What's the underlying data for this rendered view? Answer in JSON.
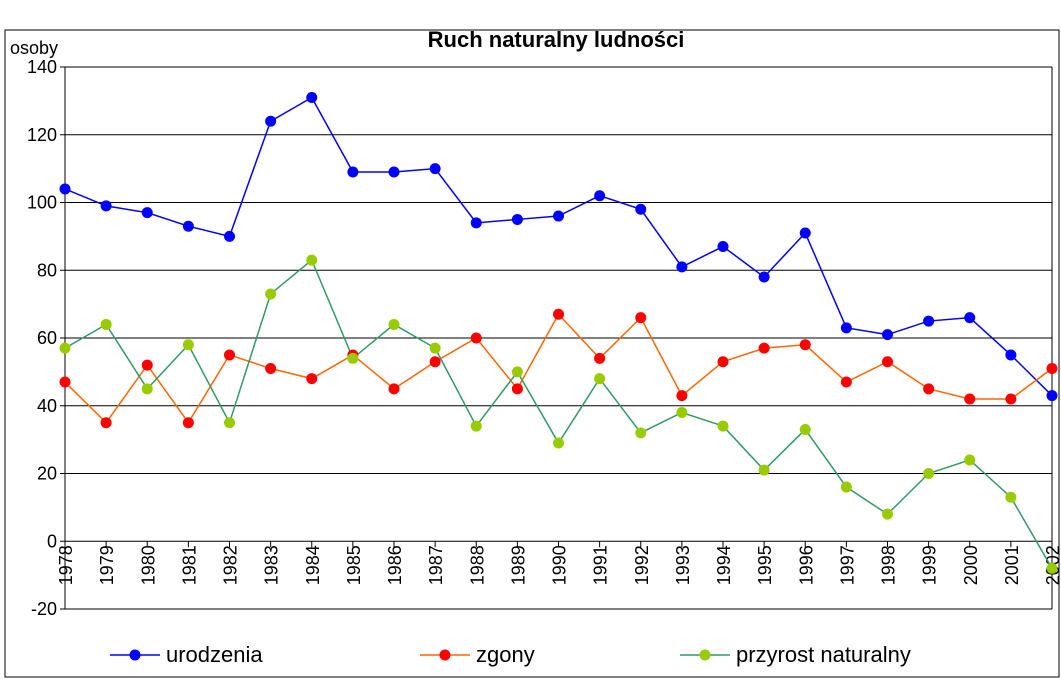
{
  "chart_data": {
    "type": "line",
    "title": "Ruch naturalny ludności",
    "y_label": "osoby",
    "categories": [
      "1978",
      "1979",
      "1980",
      "1981",
      "1982",
      "1983",
      "1984",
      "1985",
      "1986",
      "1987",
      "1988",
      "1989",
      "1990",
      "1991",
      "1992",
      "1993",
      "1994",
      "1995",
      "1996",
      "1997",
      "1998",
      "1999",
      "2000",
      "2001",
      "2002"
    ],
    "series": [
      {
        "name": "urodzenia",
        "color": "#0000ff",
        "marker_color": "#0000ff",
        "values": [
          104,
          99,
          97,
          93,
          90,
          124,
          131,
          109,
          109,
          110,
          94,
          95,
          96,
          102,
          98,
          81,
          87,
          78,
          91,
          63,
          61,
          65,
          66,
          55,
          43
        ]
      },
      {
        "name": "zgony",
        "color": "#ff6600",
        "marker_color": "#ff0000",
        "values": [
          47,
          35,
          52,
          35,
          55,
          51,
          48,
          55,
          45,
          53,
          60,
          45,
          67,
          54,
          66,
          43,
          53,
          57,
          58,
          47,
          53,
          45,
          42,
          42,
          51
        ]
      },
      {
        "name": "przyrost naturalny",
        "color": "#339966",
        "marker_color": "#99cc00",
        "values": [
          57,
          64,
          45,
          58,
          35,
          73,
          83,
          54,
          64,
          57,
          34,
          50,
          29,
          48,
          32,
          38,
          34,
          21,
          33,
          16,
          8,
          20,
          24,
          13,
          -8
        ]
      }
    ],
    "ylim": [
      -20,
      140
    ],
    "yticks": [
      -20,
      0,
      20,
      40,
      60,
      80,
      100,
      120,
      140
    ],
    "grid": true,
    "legend": "bottom"
  }
}
